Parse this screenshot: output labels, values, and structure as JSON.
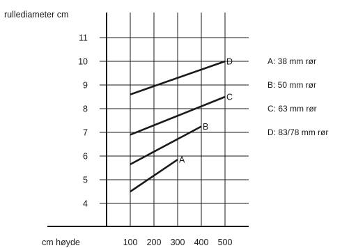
{
  "chart_data": {
    "type": "line",
    "title": "",
    "xlabel": "cm høyde",
    "ylabel": "rullediameter cm",
    "xlim": [
      0,
      550
    ],
    "ylim": [
      2,
      12
    ],
    "x_ticks": [
      100,
      200,
      300,
      400,
      500
    ],
    "y_ticks": [
      4,
      5,
      6,
      7,
      8,
      9,
      10,
      11
    ],
    "grid": true,
    "legend_placement": "right",
    "line_color": "#1a1a1a",
    "series": [
      {
        "name": "A",
        "legend": "A: 38 mm rør",
        "x": [
          100,
          300
        ],
        "y": [
          4.5,
          5.85
        ]
      },
      {
        "name": "B",
        "legend": "B: 50 mm rør",
        "x": [
          100,
          400
        ],
        "y": [
          5.65,
          7.25
        ]
      },
      {
        "name": "C",
        "legend": "C: 63 mm rør",
        "x": [
          100,
          500
        ],
        "y": [
          6.9,
          8.5
        ]
      },
      {
        "name": "D",
        "legend": "D: 83/78 mm rør",
        "x": [
          100,
          500
        ],
        "y": [
          8.6,
          10.0
        ]
      }
    ]
  }
}
